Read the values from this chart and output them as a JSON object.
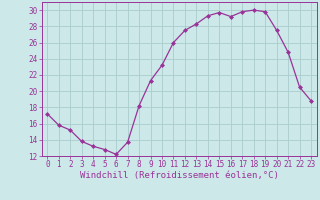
{
  "x": [
    0,
    1,
    2,
    3,
    4,
    5,
    6,
    7,
    8,
    9,
    10,
    11,
    12,
    13,
    14,
    15,
    16,
    17,
    18,
    19,
    20,
    21,
    22,
    23
  ],
  "y": [
    17.2,
    15.8,
    15.2,
    13.8,
    13.2,
    12.8,
    12.2,
    13.7,
    18.2,
    21.3,
    23.2,
    26.0,
    27.5,
    28.3,
    29.3,
    29.7,
    29.2,
    29.8,
    30.0,
    29.8,
    27.5,
    24.8,
    20.5,
    18.8
  ],
  "line_color": "#993399",
  "marker": "D",
  "marker_size": 2.0,
  "bg_color": "#cce8e8",
  "grid_color": "#aacccc",
  "xlabel": "Windchill (Refroidissement éolien,°C)",
  "ylim": [
    12,
    31
  ],
  "xlim": [
    -0.5,
    23.5
  ],
  "yticks": [
    12,
    14,
    16,
    18,
    20,
    22,
    24,
    26,
    28,
    30
  ],
  "xticks": [
    0,
    1,
    2,
    3,
    4,
    5,
    6,
    7,
    8,
    9,
    10,
    11,
    12,
    13,
    14,
    15,
    16,
    17,
    18,
    19,
    20,
    21,
    22,
    23
  ],
  "tick_label_fontsize": 5.5,
  "xlabel_fontsize": 6.5
}
